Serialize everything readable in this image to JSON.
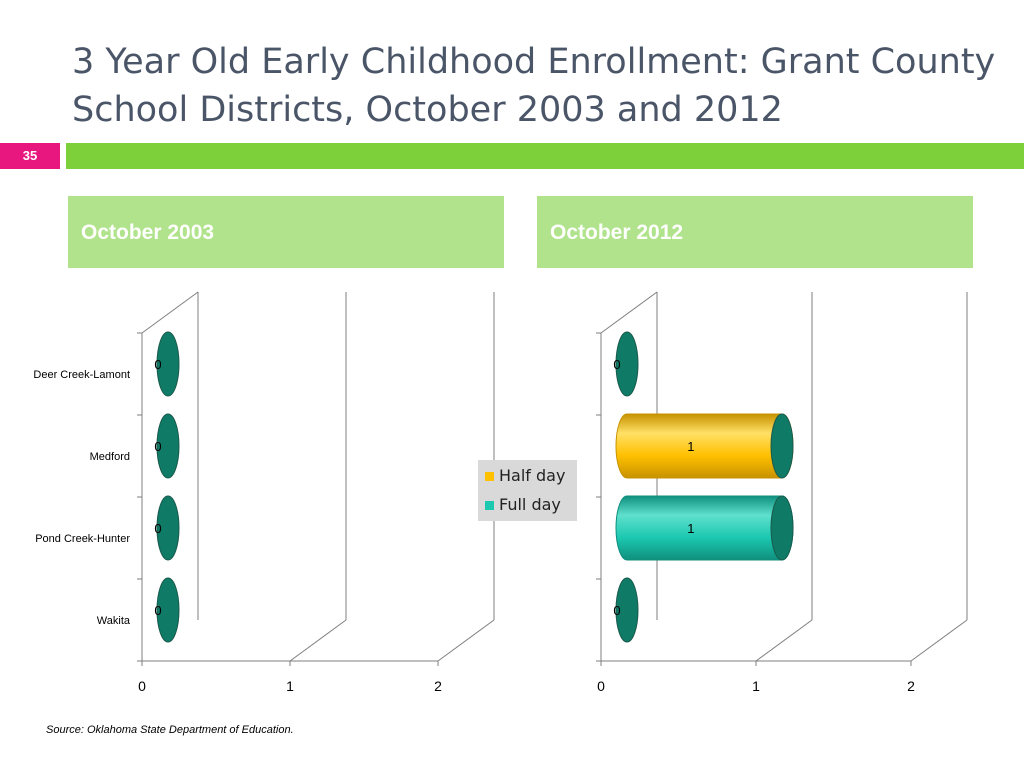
{
  "slide": {
    "title_line1": "3 Year Old Early Childhood Enrollment: Grant County",
    "title_line2": "School Districts, October 2003 and 2012",
    "number": "35",
    "source": "Source:  Oklahoma State Department of Education."
  },
  "panels": [
    {
      "title": "October 2003"
    },
    {
      "title": "October 2012"
    }
  ],
  "legend": {
    "items": [
      {
        "label": "Half day",
        "color": "#ffc000"
      },
      {
        "label": "Full day",
        "color": "#1cc8b0"
      }
    ]
  },
  "chart_data": [
    {
      "type": "bar",
      "orientation": "horizontal",
      "title": "October 2003",
      "categories": [
        "Deer Creek-Lamont",
        "Medford",
        "Pond Creek-Hunter",
        "Wakita"
      ],
      "series": [
        {
          "name": "Half day",
          "values": [
            0,
            0,
            0,
            0
          ]
        },
        {
          "name": "Full day",
          "values": [
            0,
            0,
            0,
            0
          ]
        }
      ],
      "data_labels": [
        "0",
        "0",
        "0",
        "0"
      ],
      "xlim": [
        0,
        2
      ],
      "xticks": [
        "0",
        "1",
        "2"
      ],
      "grid": true,
      "legend": "right"
    },
    {
      "type": "bar",
      "orientation": "horizontal",
      "title": "October 2012",
      "categories": [
        "Deer Creek-Lamont",
        "Medford",
        "Pond Creek-Hunter",
        "Wakita"
      ],
      "series": [
        {
          "name": "Half day",
          "values": [
            0,
            1,
            0,
            0
          ]
        },
        {
          "name": "Full day",
          "values": [
            0,
            0,
            1,
            0
          ]
        }
      ],
      "data_labels": [
        "0",
        "1",
        "1",
        "0"
      ],
      "xlim": [
        0,
        2
      ],
      "xticks": [
        "0",
        "1",
        "2"
      ],
      "grid": true,
      "legend": "left"
    }
  ]
}
